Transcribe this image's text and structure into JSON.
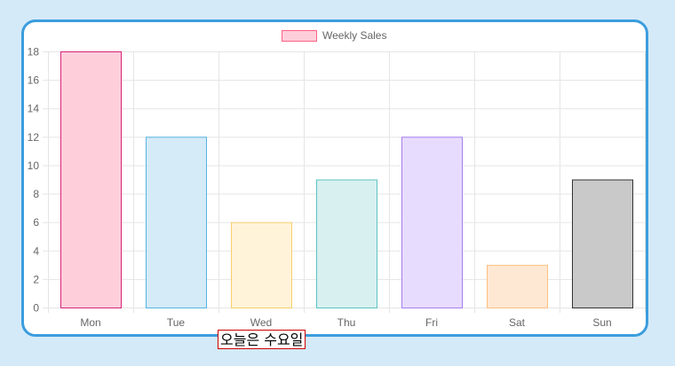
{
  "chart_data": {
    "type": "bar",
    "categories": [
      "Mon",
      "Tue",
      "Wed",
      "Thu",
      "Fri",
      "Sat",
      "Sun"
    ],
    "series": [
      {
        "name": "Weekly Sales",
        "values": [
          18,
          12,
          6,
          9,
          12,
          3,
          9
        ]
      }
    ],
    "ylim": [
      0,
      18
    ],
    "yticks": [
      "0",
      "2",
      "4",
      "6",
      "8",
      "10",
      "12",
      "14",
      "16",
      "18"
    ],
    "grid": true,
    "legend_position": "top-center",
    "legend_swatch_fill": "#ffcedb",
    "legend_swatch_stroke": "#ff6384",
    "bar_fills": [
      "#ffcedb",
      "#d5ebf8",
      "#fff3d9",
      "#d8f1f0",
      "#e8dcfe",
      "#ffe8d3",
      "#c9c9c9"
    ],
    "bar_strokes": [
      "#d6247a",
      "#56b4e0",
      "#f8cf6b",
      "#5cc2c2",
      "#a57cf0",
      "#ffbf80",
      "#333333"
    ]
  },
  "caption": {
    "text": "오늘은 수요일"
  },
  "colors": {
    "page_background": "#d4eaf9",
    "card_border": "#3b9ddd",
    "grid": "#e5e5e5"
  }
}
